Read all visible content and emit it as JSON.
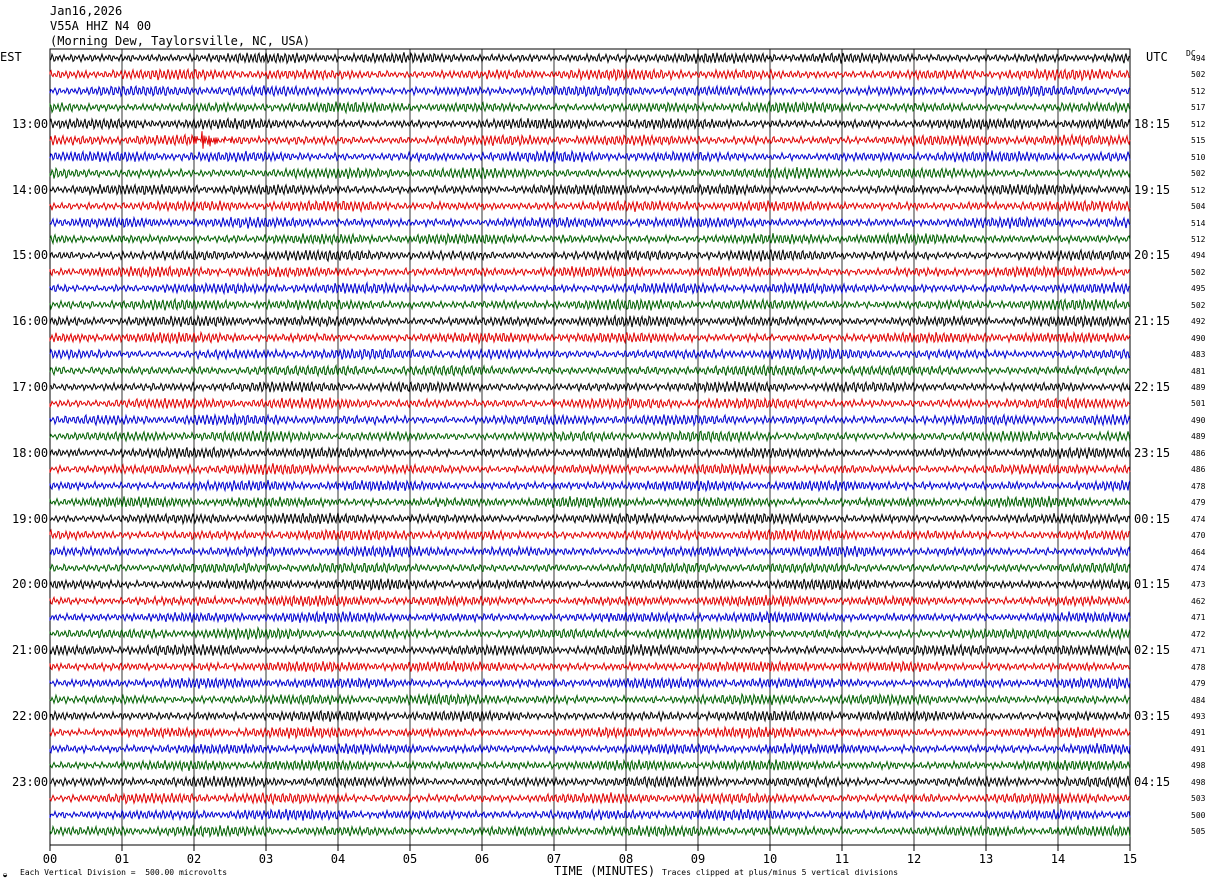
{
  "header": {
    "line1": "Jan16,2026",
    "line2": "V55A HHZ N4 00",
    "line3": "(Morning Dew, Taylorsville, NC, USA)"
  },
  "left_label": "EST",
  "right_label": "UTC",
  "dc_label": "DC",
  "footer": {
    "left": "Each Vertical Division =  500.00 microvolts",
    "middle": "TIME (MINUTES)",
    "right": "Traces clipped at plus/minus 5 vertical divisions",
    "mark": "◒"
  },
  "chart_data": {
    "type": "line",
    "title": "V55A HHZ N4 00",
    "xlabel": "TIME (MINUTES)",
    "xlim": [
      0,
      15
    ],
    "x_ticks": [
      "00",
      "01",
      "02",
      "03",
      "04",
      "05",
      "06",
      "07",
      "08",
      "09",
      "10",
      "11",
      "12",
      "13",
      "14",
      "15"
    ],
    "trace_colors": [
      "#000000",
      "#e00000",
      "#0000d0",
      "#006000"
    ],
    "trace_count": 48,
    "left_time_labels": [
      "13:00",
      "14:00",
      "15:00",
      "16:00",
      "17:00",
      "18:00",
      "19:00",
      "20:00",
      "21:00",
      "22:00",
      "23:00"
    ],
    "right_time_labels": [
      "18:15",
      "19:15",
      "20:15",
      "21:15",
      "22:15",
      "23:15",
      "00:15",
      "01:15",
      "02:15",
      "03:15",
      "04:15"
    ],
    "time_label_rows": [
      4,
      8,
      12,
      16,
      20,
      24,
      28,
      32,
      36,
      40,
      44
    ],
    "dc_values": [
      494,
      502,
      512,
      517,
      512,
      515,
      510,
      502,
      512,
      504,
      514,
      512,
      494,
      502,
      495,
      502,
      492,
      490,
      483,
      481,
      489,
      501,
      490,
      489,
      486,
      486,
      478,
      479,
      474,
      470,
      464,
      474,
      473,
      462,
      471,
      472,
      471,
      478,
      479,
      484,
      493,
      491,
      491,
      498,
      498,
      503,
      500,
      505
    ],
    "event": {
      "trace": 5,
      "minute": 2.1
    }
  }
}
